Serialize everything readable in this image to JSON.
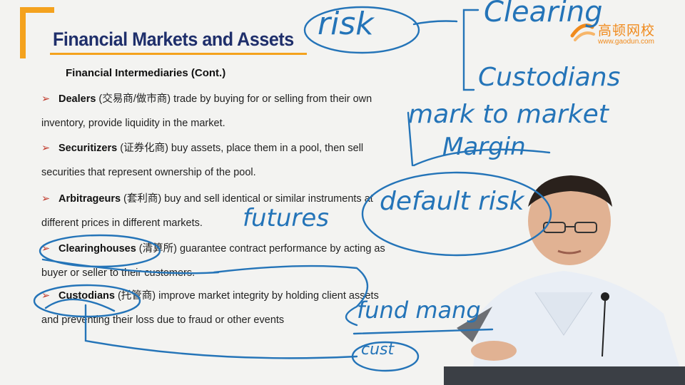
{
  "slide": {
    "title": "Financial Markets and Assets",
    "subtitle": "Financial Intermediaries (Cont.)",
    "bullets": [
      {
        "marker": "➢",
        "term": "Dealers",
        "cn": " (交易商/做市商)",
        "line1": " trade by buying for or selling from their own",
        "line2": "inventory, provide liquidity in the market."
      },
      {
        "marker": "➢",
        "term": "Securitizers",
        "cn": " (证券化商)",
        "line1": "  buy assets, place them in a pool, then sell",
        "line2": "securities that represent ownership of the pool."
      },
      {
        "marker": "➢",
        "term": "Arbitrageurs",
        "cn": " (套利商)",
        "line1": " buy and sell identical or similar instruments at",
        "line2": "different prices in different markets."
      },
      {
        "marker": "➢",
        "term": "Clearinghouses",
        "cn": " (清算所)",
        "line1": " guarantee contract performance by acting as",
        "line2": "buyer or seller to their customers."
      },
      {
        "marker": "➢",
        "term": "Custodians",
        "cn": " (托管商)",
        "line1": " improve market integrity by holding client assets",
        "line2": "and preventing their loss due to fraud or other events"
      }
    ]
  },
  "logo": {
    "cn": "高顿网校",
    "url": "www.gaodun.com"
  },
  "annotations": {
    "risk": "risk",
    "clearing": "Clearing",
    "custodians": "Custodians",
    "mark_to_market": "mark to market",
    "margin": "Margin",
    "futures": "futures",
    "default_risk": "default risk",
    "fund_mang": "fund mang",
    "cust_abbrev": "cust"
  },
  "colors": {
    "title": "#1f2f6b",
    "accent": "#f4a21e",
    "ink": "#2474b8",
    "logo": "#f08a1c",
    "arrow": "#c0392b"
  }
}
